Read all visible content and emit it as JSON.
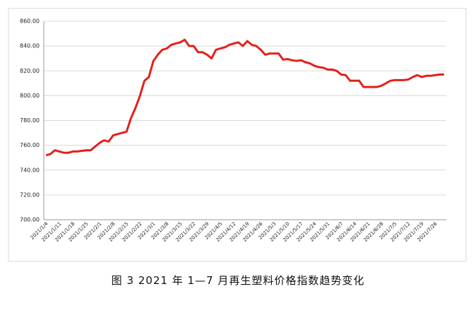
{
  "chart_data": {
    "type": "line",
    "title": "图 3  2021 年 1—7 月再生塑料价格指数趋势变化",
    "categories": [
      "2021/1/4",
      null,
      null,
      "2021/1/11",
      null,
      null,
      "2021/1/18",
      null,
      null,
      "2021/1/25",
      null,
      null,
      "2021/2/1",
      null,
      null,
      "2021/2/8",
      null,
      null,
      "2021/2/15",
      null,
      null,
      "2021/2/22",
      null,
      null,
      "2021/3/1",
      null,
      null,
      "2021/3/8",
      null,
      null,
      "2021/3/15",
      null,
      null,
      "2021/3/22",
      null,
      null,
      "2021/3/29",
      null,
      null,
      "2021/4/5",
      null,
      null,
      "2021/4/12",
      null,
      null,
      "2021/4/19",
      null,
      null,
      "2021/4/26",
      null,
      null,
      "2021/5/3",
      null,
      null,
      "2021/5/10",
      null,
      null,
      "2021/5/17",
      null,
      null,
      "2021/5/24",
      null,
      null,
      "2021/5/31",
      null,
      null,
      "2021/6/7",
      null,
      null,
      "2021/6/14",
      null,
      null,
      "2021/6/21",
      null,
      null,
      "2021/6/28",
      null,
      null,
      "2021/7/5",
      null,
      null,
      "2021/7/12",
      null,
      null,
      "2021/7/19",
      null,
      null,
      "2021/7/26",
      null,
      null
    ],
    "series": [
      {
        "name": "再生塑料价格指数",
        "color": "#e3201b",
        "values": [
          752,
          753,
          756,
          755,
          754,
          754,
          755,
          755,
          755.5,
          756,
          756,
          759,
          762,
          764,
          763,
          768,
          769,
          770,
          771,
          782,
          790,
          800,
          812,
          815,
          828,
          833,
          837,
          838,
          841,
          842,
          843,
          845,
          840,
          840,
          835,
          835,
          833,
          830,
          837,
          838,
          839,
          841,
          842,
          843,
          840,
          844,
          841,
          840,
          837,
          833,
          834,
          834,
          834,
          829,
          829.5,
          828.5,
          828,
          828.5,
          827,
          826,
          824,
          823,
          822.5,
          821,
          821,
          820,
          817,
          816.5,
          812,
          812,
          812,
          807,
          807,
          807,
          807,
          808,
          810,
          812,
          812.5,
          812.5,
          812.5,
          813,
          815,
          816.5,
          815,
          816,
          816,
          816.5,
          817,
          817
        ]
      }
    ],
    "ylim": [
      700,
      860
    ],
    "yticks": [
      {
        "value": 700,
        "label": "700.00"
      },
      {
        "value": 720,
        "label": "720.00"
      },
      {
        "value": 740,
        "label": "740.00"
      },
      {
        "value": 760,
        "label": "760.00"
      },
      {
        "value": 780,
        "label": "780.00"
      },
      {
        "value": 800,
        "label": "800.00"
      },
      {
        "value": 820,
        "label": "820.00"
      },
      {
        "value": 840,
        "label": "840.00"
      },
      {
        "value": 860,
        "label": "860.00"
      }
    ],
    "grid": true
  }
}
